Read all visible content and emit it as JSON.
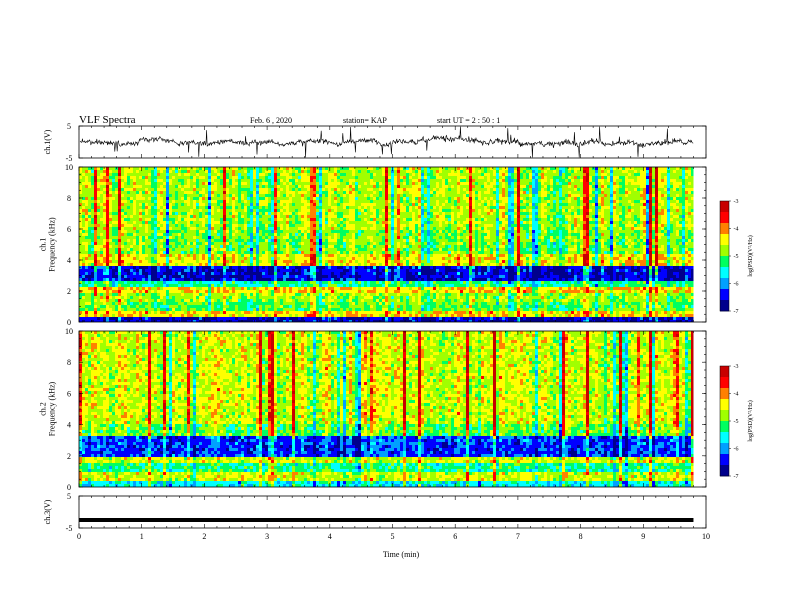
{
  "header": {
    "title": "VLF Spectra",
    "date": "Feb. 6 , 2020",
    "station": "station= KAP",
    "start": "start UT = 2 : 50 : 1"
  },
  "chart_data": [
    {
      "id": "ch1-voltage",
      "type": "line",
      "ylabel": "ch.1(V)",
      "ylim": [
        -5,
        5
      ],
      "yticks": [
        -5,
        5
      ],
      "xlim": [
        0,
        10
      ],
      "data_extent_min": 9.8,
      "description_level": "noisy waveform centered near 0 V, roughly +/-2 V with sharp spikes"
    },
    {
      "id": "ch1-spectrogram",
      "type": "heatmap",
      "ylabel": "ch.1\nFrequency (kHz)",
      "ylabel_lines": [
        "ch.1",
        "Frequency (kHz)"
      ],
      "ylim": [
        0,
        10
      ],
      "yticks": [
        0,
        2,
        4,
        6,
        8,
        10
      ],
      "xlim": [
        0,
        10
      ],
      "data_extent_min": 9.8,
      "colorbar": {
        "label": "log(PSD)(V²/Hz)",
        "range": [
          -7,
          -3
        ],
        "ticks": [
          -3,
          -4,
          -5,
          -6,
          -7
        ]
      },
      "bands_khz": [
        {
          "f0": 0.0,
          "f1": 0.3,
          "level": -6.6
        },
        {
          "f0": 0.3,
          "f1": 0.7,
          "level": -4.3
        },
        {
          "f0": 0.7,
          "f1": 1.3,
          "level": -5.0
        },
        {
          "f0": 1.3,
          "f1": 1.9,
          "level": -4.8
        },
        {
          "f0": 1.9,
          "f1": 2.3,
          "level": -4.3
        },
        {
          "f0": 2.3,
          "f1": 2.7,
          "level": -5.3
        },
        {
          "f0": 2.7,
          "f1": 3.6,
          "level": -6.5
        },
        {
          "f0": 3.6,
          "f1": 4.3,
          "level": -4.4
        },
        {
          "f0": 4.3,
          "f1": 6.0,
          "level": -4.9
        },
        {
          "f0": 6.0,
          "f1": 10.0,
          "level": -4.7
        }
      ]
    },
    {
      "id": "ch2-spectrogram",
      "type": "heatmap",
      "ylabel": "ch.2\nFrequency (kHz)",
      "ylabel_lines": [
        "ch.2",
        "Frequency (kHz)"
      ],
      "ylim": [
        0,
        10
      ],
      "yticks": [
        0,
        2,
        4,
        6,
        8,
        10
      ],
      "xlim": [
        0,
        10
      ],
      "data_extent_min": 9.8,
      "colorbar": {
        "label": "log(PSD)(V²/Hz)",
        "range": [
          -7,
          -3
        ],
        "ticks": [
          -3,
          -4,
          -5,
          -6,
          -7
        ]
      },
      "bands_khz": [
        {
          "f0": 0.0,
          "f1": 0.4,
          "level": -5.6
        },
        {
          "f0": 0.4,
          "f1": 1.0,
          "level": -4.6
        },
        {
          "f0": 1.0,
          "f1": 1.6,
          "level": -5.3
        },
        {
          "f0": 1.6,
          "f1": 2.0,
          "level": -4.6
        },
        {
          "f0": 2.0,
          "f1": 3.2,
          "level": -6.3
        },
        {
          "f0": 3.2,
          "f1": 4.0,
          "level": -5.0
        },
        {
          "f0": 4.0,
          "f1": 10.0,
          "level": -4.6
        }
      ]
    },
    {
      "id": "ch3-voltage",
      "type": "line",
      "ylabel": "ch.3(V)",
      "ylim": [
        -5,
        5
      ],
      "yticks": [
        -5,
        5
      ],
      "xlim": [
        0,
        10
      ],
      "data_extent_min": 9.8,
      "constant_value": -2.5,
      "xlabel": "Time (min)",
      "xticks": [
        0,
        1,
        2,
        3,
        4,
        5,
        6,
        7,
        8,
        9,
        10
      ]
    }
  ],
  "colors": {
    "colormap": [
      "#00008c",
      "#0000ff",
      "#00a0ff",
      "#00ffff",
      "#00ff60",
      "#a0ff00",
      "#ffff00",
      "#ff8000",
      "#ff0000",
      "#c80000"
    ]
  }
}
